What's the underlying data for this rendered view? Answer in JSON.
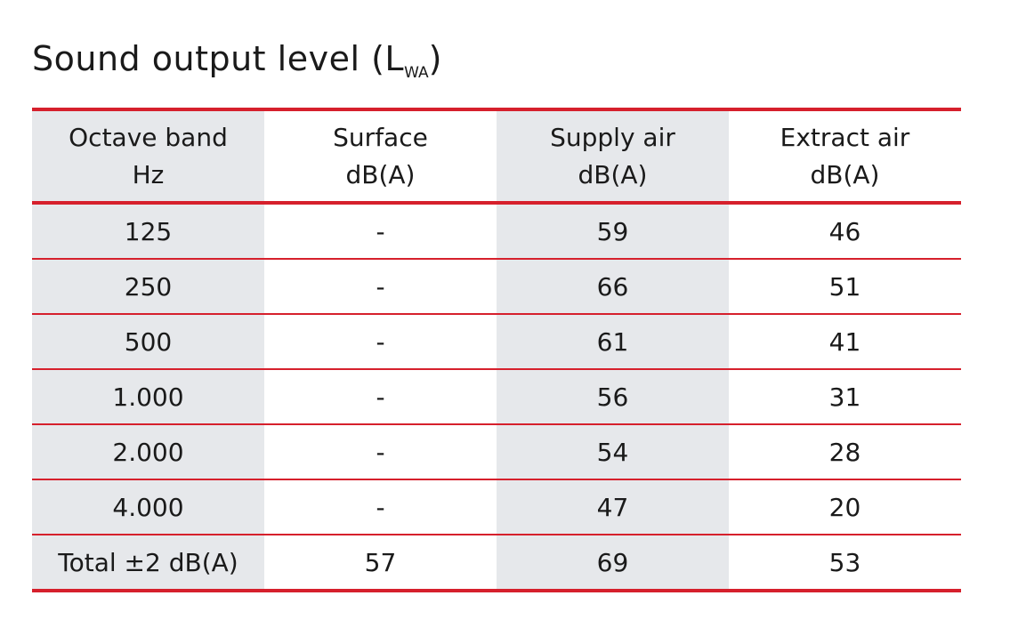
{
  "title": {
    "main": "Sound output level (L",
    "sub": "WA",
    "close": ")"
  },
  "table": {
    "headers": [
      {
        "line1": "Octave band",
        "line2": "Hz"
      },
      {
        "line1": "Surface",
        "line2": "dB(A)"
      },
      {
        "line1": "Supply air",
        "line2": "dB(A)"
      },
      {
        "line1": "Extract air",
        "line2": "dB(A)"
      }
    ],
    "rows": [
      [
        "125",
        "-",
        "59",
        "46"
      ],
      [
        "250",
        "-",
        "66",
        "51"
      ],
      [
        "500",
        "-",
        "61",
        "41"
      ],
      [
        "1.000",
        "-",
        "56",
        "31"
      ],
      [
        "2.000",
        "-",
        "54",
        "28"
      ],
      [
        "4.000",
        "-",
        "47",
        "20"
      ],
      [
        "Total ±2 dB(A)",
        "57",
        "69",
        "53"
      ]
    ]
  },
  "colors": {
    "accent_red": "#d6202c",
    "shade_gray": "#e6e8eb"
  }
}
